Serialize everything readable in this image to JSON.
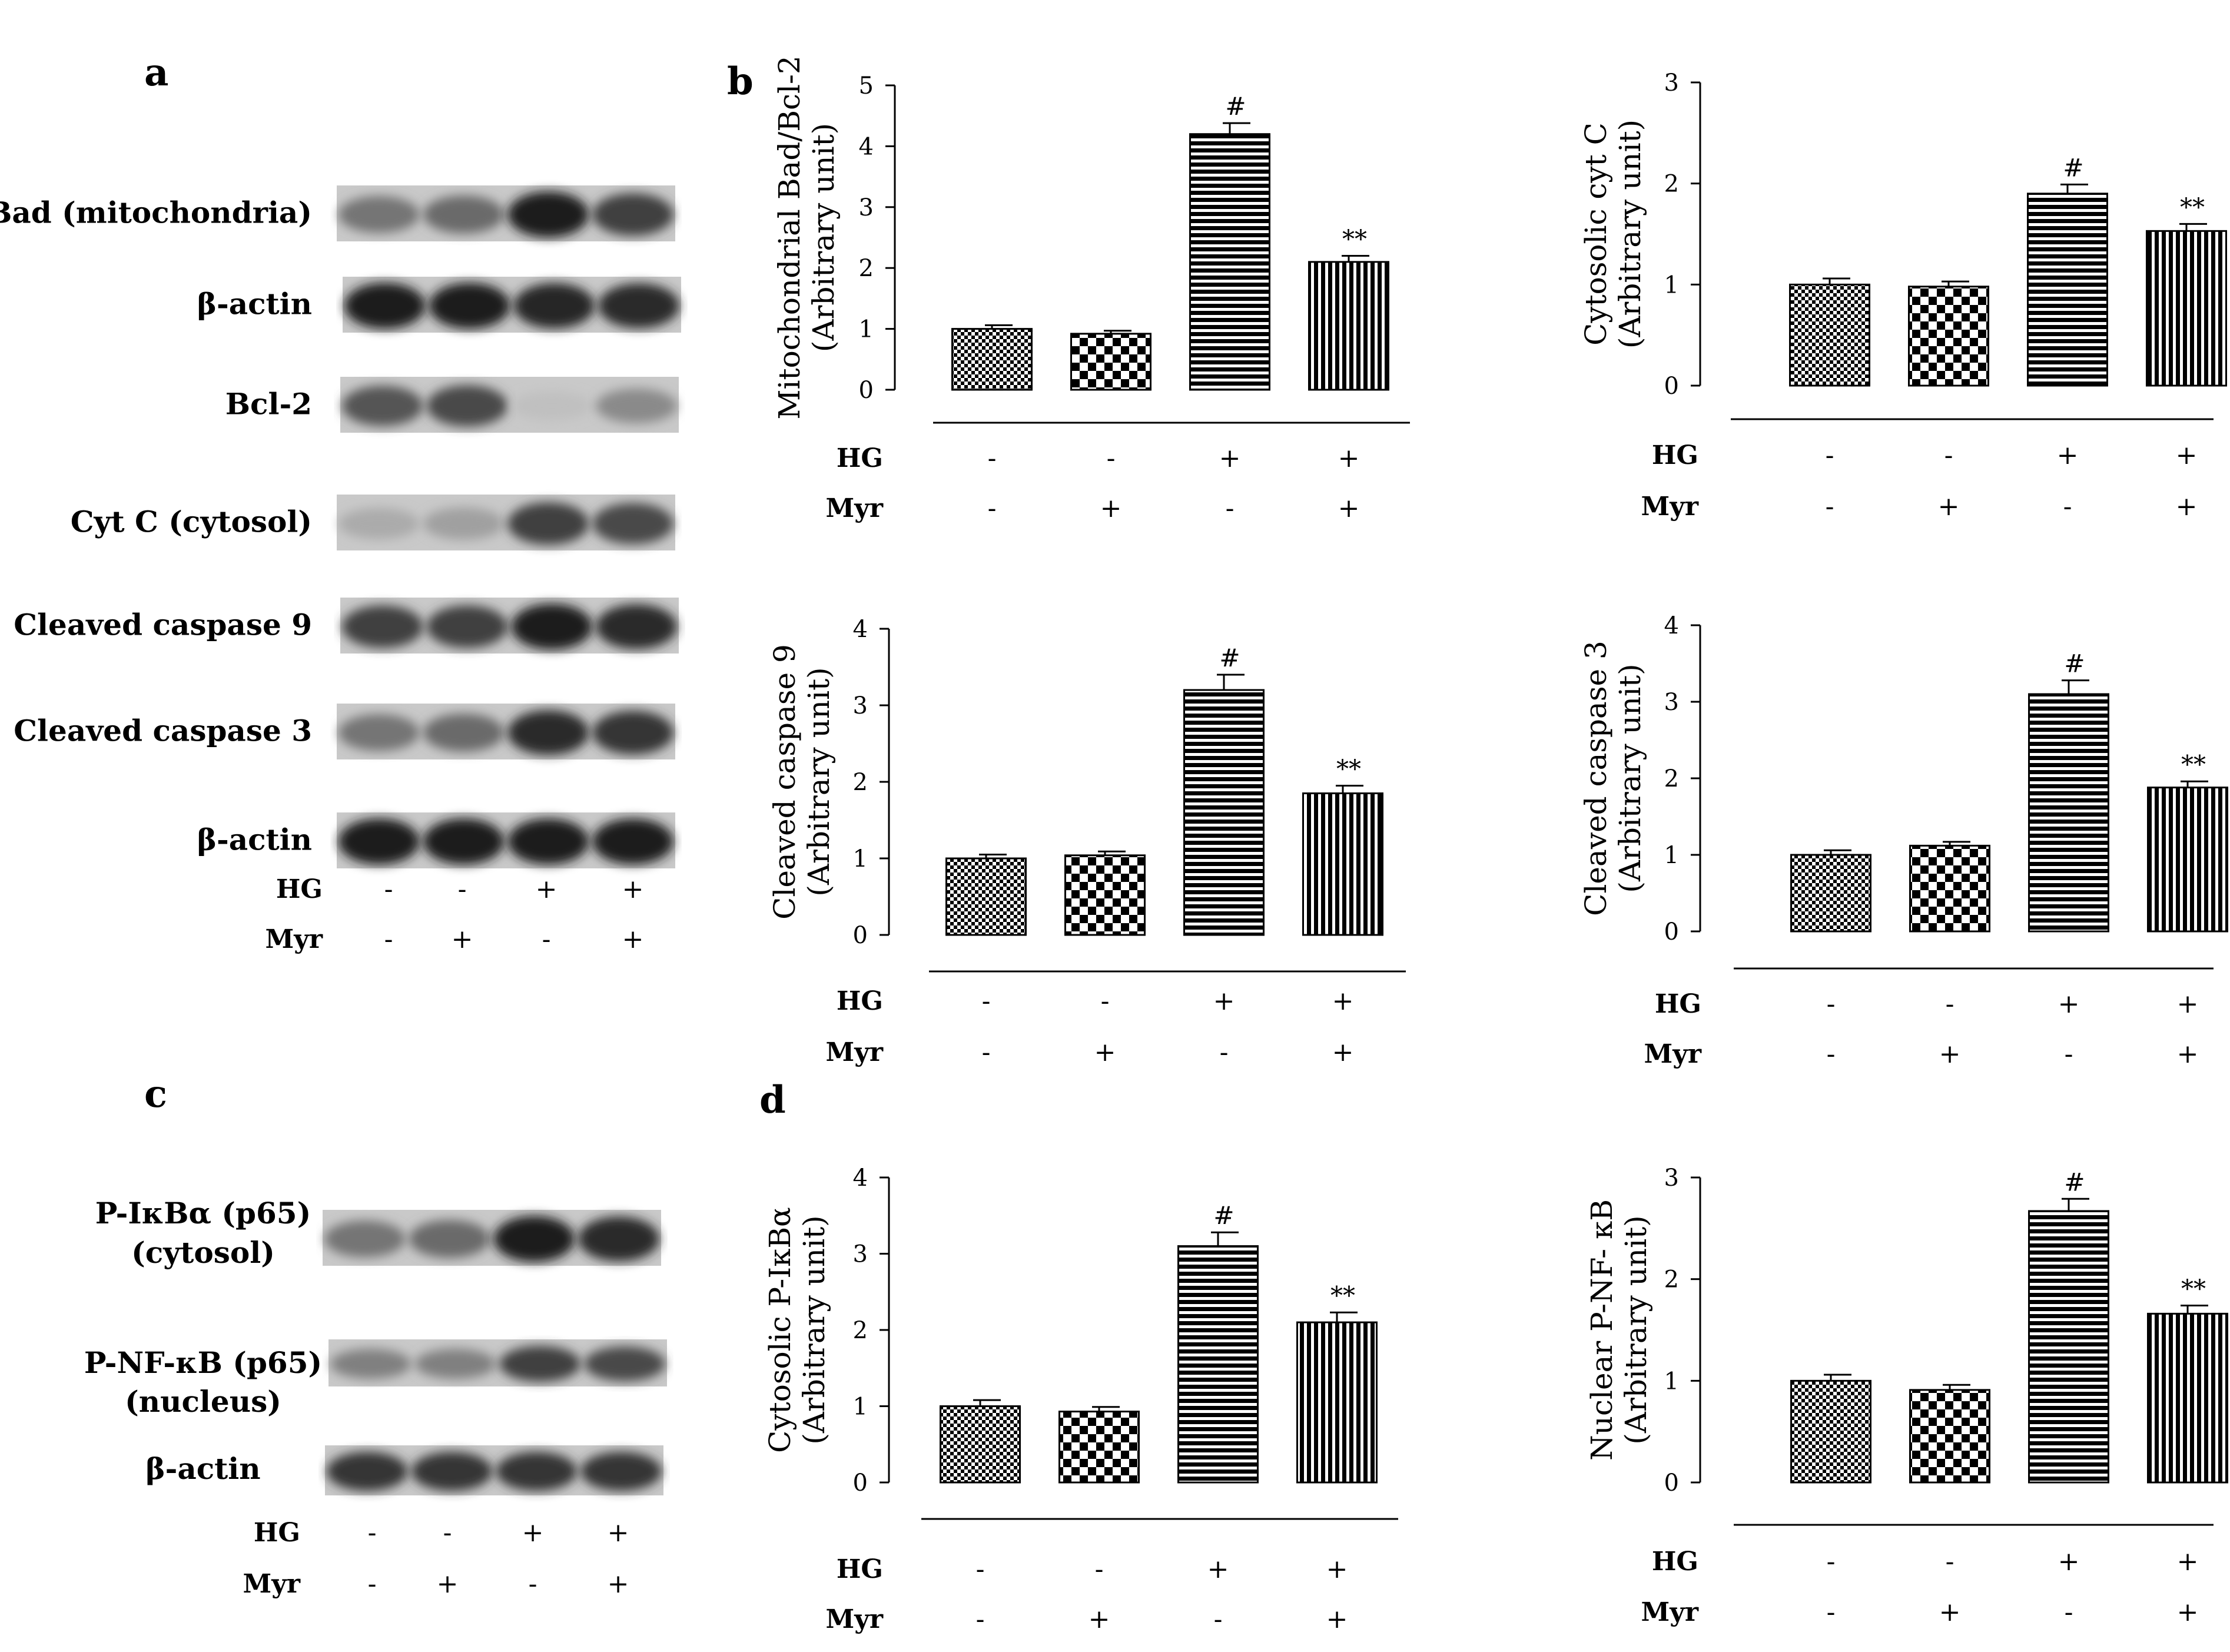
{
  "panels": [
    {
      "id": "a",
      "label": "a"
    },
    {
      "id": "b",
      "label": "b"
    },
    {
      "id": "c",
      "label": "c"
    },
    {
      "id": "d",
      "label": "d"
    }
  ],
  "conditions": {
    "hg_label": "HG",
    "myr_label": "Myr",
    "hg": [
      "-",
      "-",
      "+",
      "+"
    ],
    "myr": [
      "-",
      "+",
      "-",
      "+"
    ]
  },
  "blots_a": [
    {
      "label": "Bad (mitochondria)",
      "intensity": [
        0.55,
        0.6,
        0.95,
        0.8
      ]
    },
    {
      "label": "β-actin",
      "intensity": [
        0.95,
        0.95,
        0.92,
        0.9
      ]
    },
    {
      "label": "Bcl-2",
      "intensity": [
        0.7,
        0.75,
        0.2,
        0.45
      ]
    },
    {
      "label": "Cyt C (cytosol)",
      "intensity": [
        0.3,
        0.35,
        0.8,
        0.75
      ]
    },
    {
      "label": "Cleaved caspase 9",
      "intensity": [
        0.8,
        0.8,
        0.95,
        0.9
      ]
    },
    {
      "label": "Cleaved caspase 3",
      "intensity": [
        0.55,
        0.6,
        0.9,
        0.85
      ]
    },
    {
      "label": "β-actin",
      "intensity": [
        0.95,
        0.95,
        0.95,
        0.95
      ]
    }
  ],
  "blots_c": [
    {
      "label_lines": [
        "P-IκBα (p65)",
        "(cytosol)"
      ],
      "intensity": [
        0.55,
        0.6,
        0.95,
        0.9
      ]
    },
    {
      "label_lines": [
        "P-NF-κB (p65)",
        "(nucleus)"
      ],
      "intensity": [
        0.5,
        0.5,
        0.8,
        0.75
      ]
    },
    {
      "label_lines": [
        "β-actin"
      ],
      "intensity": [
        0.85,
        0.85,
        0.85,
        0.85
      ]
    }
  ],
  "chart_data": [
    {
      "type": "bar",
      "panel": "b",
      "ylabel_lines": [
        "Mitochondrial Bad/Bcl-2",
        "(Arbitrary unit)"
      ],
      "ylim": [
        0,
        5
      ],
      "yticks": [
        0,
        1,
        2,
        3,
        4,
        5
      ],
      "values": [
        1.0,
        0.92,
        4.2,
        2.1
      ],
      "errors": [
        0.06,
        0.05,
        0.18,
        0.1
      ],
      "annotations": [
        "",
        "",
        "#",
        "**"
      ]
    },
    {
      "type": "bar",
      "panel": "b",
      "ylabel_lines": [
        "Cytosolic cyt C",
        "(Arbitrary unit)"
      ],
      "ylim": [
        0,
        3
      ],
      "yticks": [
        0,
        1,
        2,
        3
      ],
      "values": [
        1.0,
        0.98,
        1.9,
        1.53
      ],
      "errors": [
        0.06,
        0.05,
        0.09,
        0.07
      ],
      "annotations": [
        "",
        "",
        "#",
        "**"
      ]
    },
    {
      "type": "bar",
      "panel": "b",
      "ylabel_lines": [
        "Cleaved caspase 9",
        "(Arbitrary unit)"
      ],
      "ylim": [
        0,
        4
      ],
      "yticks": [
        0,
        1,
        2,
        3,
        4
      ],
      "values": [
        1.0,
        1.04,
        3.2,
        1.85
      ],
      "errors": [
        0.05,
        0.05,
        0.2,
        0.1
      ],
      "annotations": [
        "",
        "",
        "#",
        "**"
      ]
    },
    {
      "type": "bar",
      "panel": "b",
      "ylabel_lines": [
        "Cleaved caspase 3",
        "(Arbitrary unit)"
      ],
      "ylim": [
        0,
        4
      ],
      "yticks": [
        0,
        1,
        2,
        3,
        4
      ],
      "values": [
        1.0,
        1.12,
        3.1,
        1.88
      ],
      "errors": [
        0.06,
        0.05,
        0.18,
        0.08
      ],
      "annotations": [
        "",
        "",
        "#",
        "**"
      ]
    },
    {
      "type": "bar",
      "panel": "d",
      "ylabel_lines": [
        "Cytosolic P-IκBα",
        "(Arbitrary unit)"
      ],
      "ylim": [
        0,
        4
      ],
      "yticks": [
        0,
        1,
        2,
        3,
        4
      ],
      "values": [
        1.0,
        0.93,
        3.1,
        2.1
      ],
      "errors": [
        0.08,
        0.06,
        0.18,
        0.13
      ],
      "annotations": [
        "",
        "",
        "#",
        "**"
      ]
    },
    {
      "type": "bar",
      "panel": "d",
      "ylabel_lines": [
        "Nuclear P-NF- κB",
        "(Arbitrary unit)"
      ],
      "ylim": [
        0,
        3
      ],
      "yticks": [
        0,
        1,
        2,
        3
      ],
      "values": [
        1.0,
        0.91,
        2.67,
        1.66
      ],
      "errors": [
        0.06,
        0.05,
        0.12,
        0.08
      ],
      "annotations": [
        "",
        "",
        "#",
        "**"
      ]
    }
  ]
}
